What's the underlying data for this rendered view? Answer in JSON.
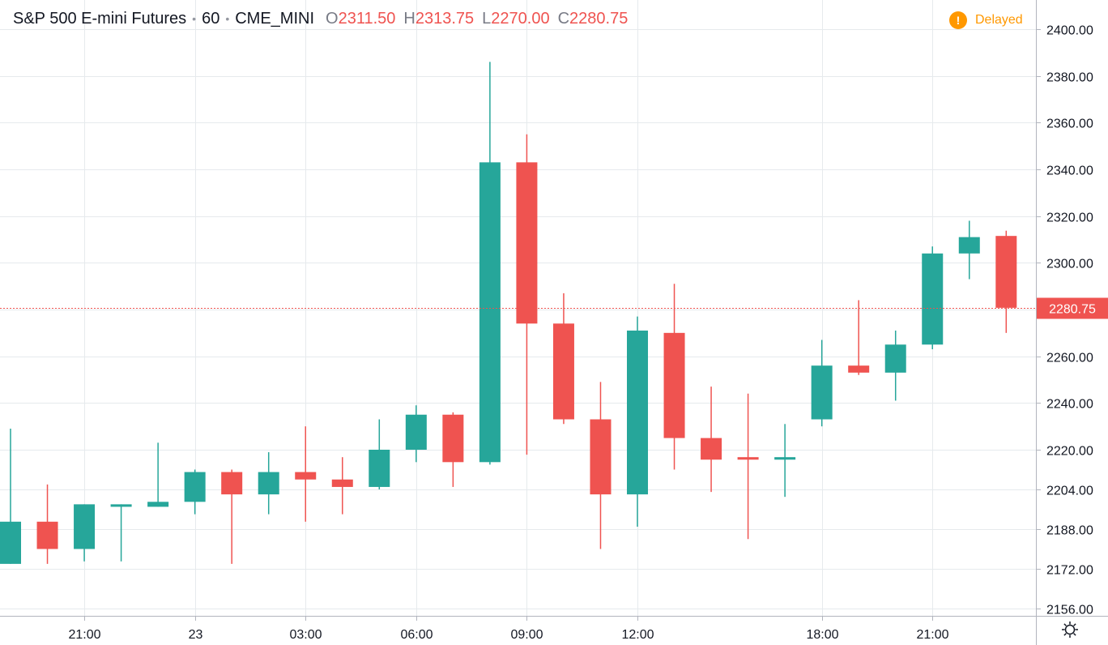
{
  "header": {
    "symbol": "S&P 500 E-mini Futures",
    "interval": "60",
    "exchange": "CME_MINI",
    "open_key": "O",
    "open": "2311.50",
    "high_key": "H",
    "high": "2313.75",
    "low_key": "L",
    "low": "2270.00",
    "close_key": "C",
    "close": "2280.75"
  },
  "status": {
    "delayed_label": "Delayed",
    "delayed_icon": "!"
  },
  "icons": {
    "settings": "gear-icon",
    "delayed": "alert-icon"
  },
  "colors": {
    "up": "#26a69a",
    "down": "#ef5350",
    "delayed": "#ff9800",
    "grid": "#e6eaed",
    "text": "#131722"
  },
  "chart_data": {
    "type": "candlestick",
    "last_price": 2280.75,
    "last_price_label": "2280.75",
    "y_ticks": [
      "2400.00",
      "2380.00",
      "2360.00",
      "2340.00",
      "2320.00",
      "2300.00",
      "2280.00",
      "2260.00",
      "2240.00",
      "2220.00",
      "2204.00",
      "2188.00",
      "2172.00",
      "2156.00"
    ],
    "x_ticks": [
      {
        "label": "21:00",
        "bar": 2
      },
      {
        "label": "23",
        "bar": 5
      },
      {
        "label": "03:00",
        "bar": 8
      },
      {
        "label": "06:00",
        "bar": 11
      },
      {
        "label": "09:00",
        "bar": 14
      },
      {
        "label": "12:00",
        "bar": 17
      },
      {
        "label": "18:00",
        "bar": 22
      },
      {
        "label": "21:00",
        "bar": 25
      }
    ],
    "candles": [
      {
        "o": 2174,
        "h": 2229,
        "l": 2174,
        "c": 2191
      },
      {
        "o": 2191,
        "h": 2206,
        "l": 2174,
        "c": 2180
      },
      {
        "o": 2180,
        "h": 2198,
        "l": 2175,
        "c": 2198
      },
      {
        "o": 2197,
        "h": 2198,
        "l": 2175,
        "c": 2198
      },
      {
        "o": 2197,
        "h": 2223,
        "l": 2197,
        "c": 2199
      },
      {
        "o": 2199,
        "h": 2212,
        "l": 2194,
        "c": 2211
      },
      {
        "o": 2211,
        "h": 2212,
        "l": 2174,
        "c": 2202
      },
      {
        "o": 2202,
        "h": 2219,
        "l": 2194,
        "c": 2211
      },
      {
        "o": 2211,
        "h": 2230,
        "l": 2191,
        "c": 2208
      },
      {
        "o": 2208,
        "h": 2217,
        "l": 2194,
        "c": 2205
      },
      {
        "o": 2205,
        "h": 2233,
        "l": 2204,
        "c": 2220
      },
      {
        "o": 2220,
        "h": 2239,
        "l": 2215,
        "c": 2235
      },
      {
        "o": 2235,
        "h": 2236,
        "l": 2205,
        "c": 2215
      },
      {
        "o": 2215,
        "h": 2386,
        "l": 2214,
        "c": 2343
      },
      {
        "o": 2343,
        "h": 2355,
        "l": 2218,
        "c": 2274
      },
      {
        "o": 2274,
        "h": 2287,
        "l": 2231,
        "c": 2233
      },
      {
        "o": 2233,
        "h": 2249,
        "l": 2180,
        "c": 2202
      },
      {
        "o": 2202,
        "h": 2277,
        "l": 2189,
        "c": 2271
      },
      {
        "o": 2270,
        "h": 2291,
        "l": 2212,
        "c": 2225
      },
      {
        "o": 2225,
        "h": 2247,
        "l": 2203,
        "c": 2216
      },
      {
        "o": 2217,
        "h": 2244,
        "l": 2184,
        "c": 2216
      },
      {
        "o": 2216,
        "h": 2231,
        "l": 2201,
        "c": 2217
      },
      {
        "o": 2233,
        "h": 2267,
        "l": 2230,
        "c": 2256
      },
      {
        "o": 2256,
        "h": 2284,
        "l": 2252,
        "c": 2253
      },
      {
        "o": 2253,
        "h": 2271,
        "l": 2241,
        "c": 2265
      },
      {
        "o": 2265,
        "h": 2307,
        "l": 2263,
        "c": 2304
      },
      {
        "o": 2304,
        "h": 2318,
        "l": 2293,
        "c": 2311
      },
      {
        "o": 2311.5,
        "h": 2313.75,
        "l": 2270,
        "c": 2280.75
      }
    ]
  }
}
